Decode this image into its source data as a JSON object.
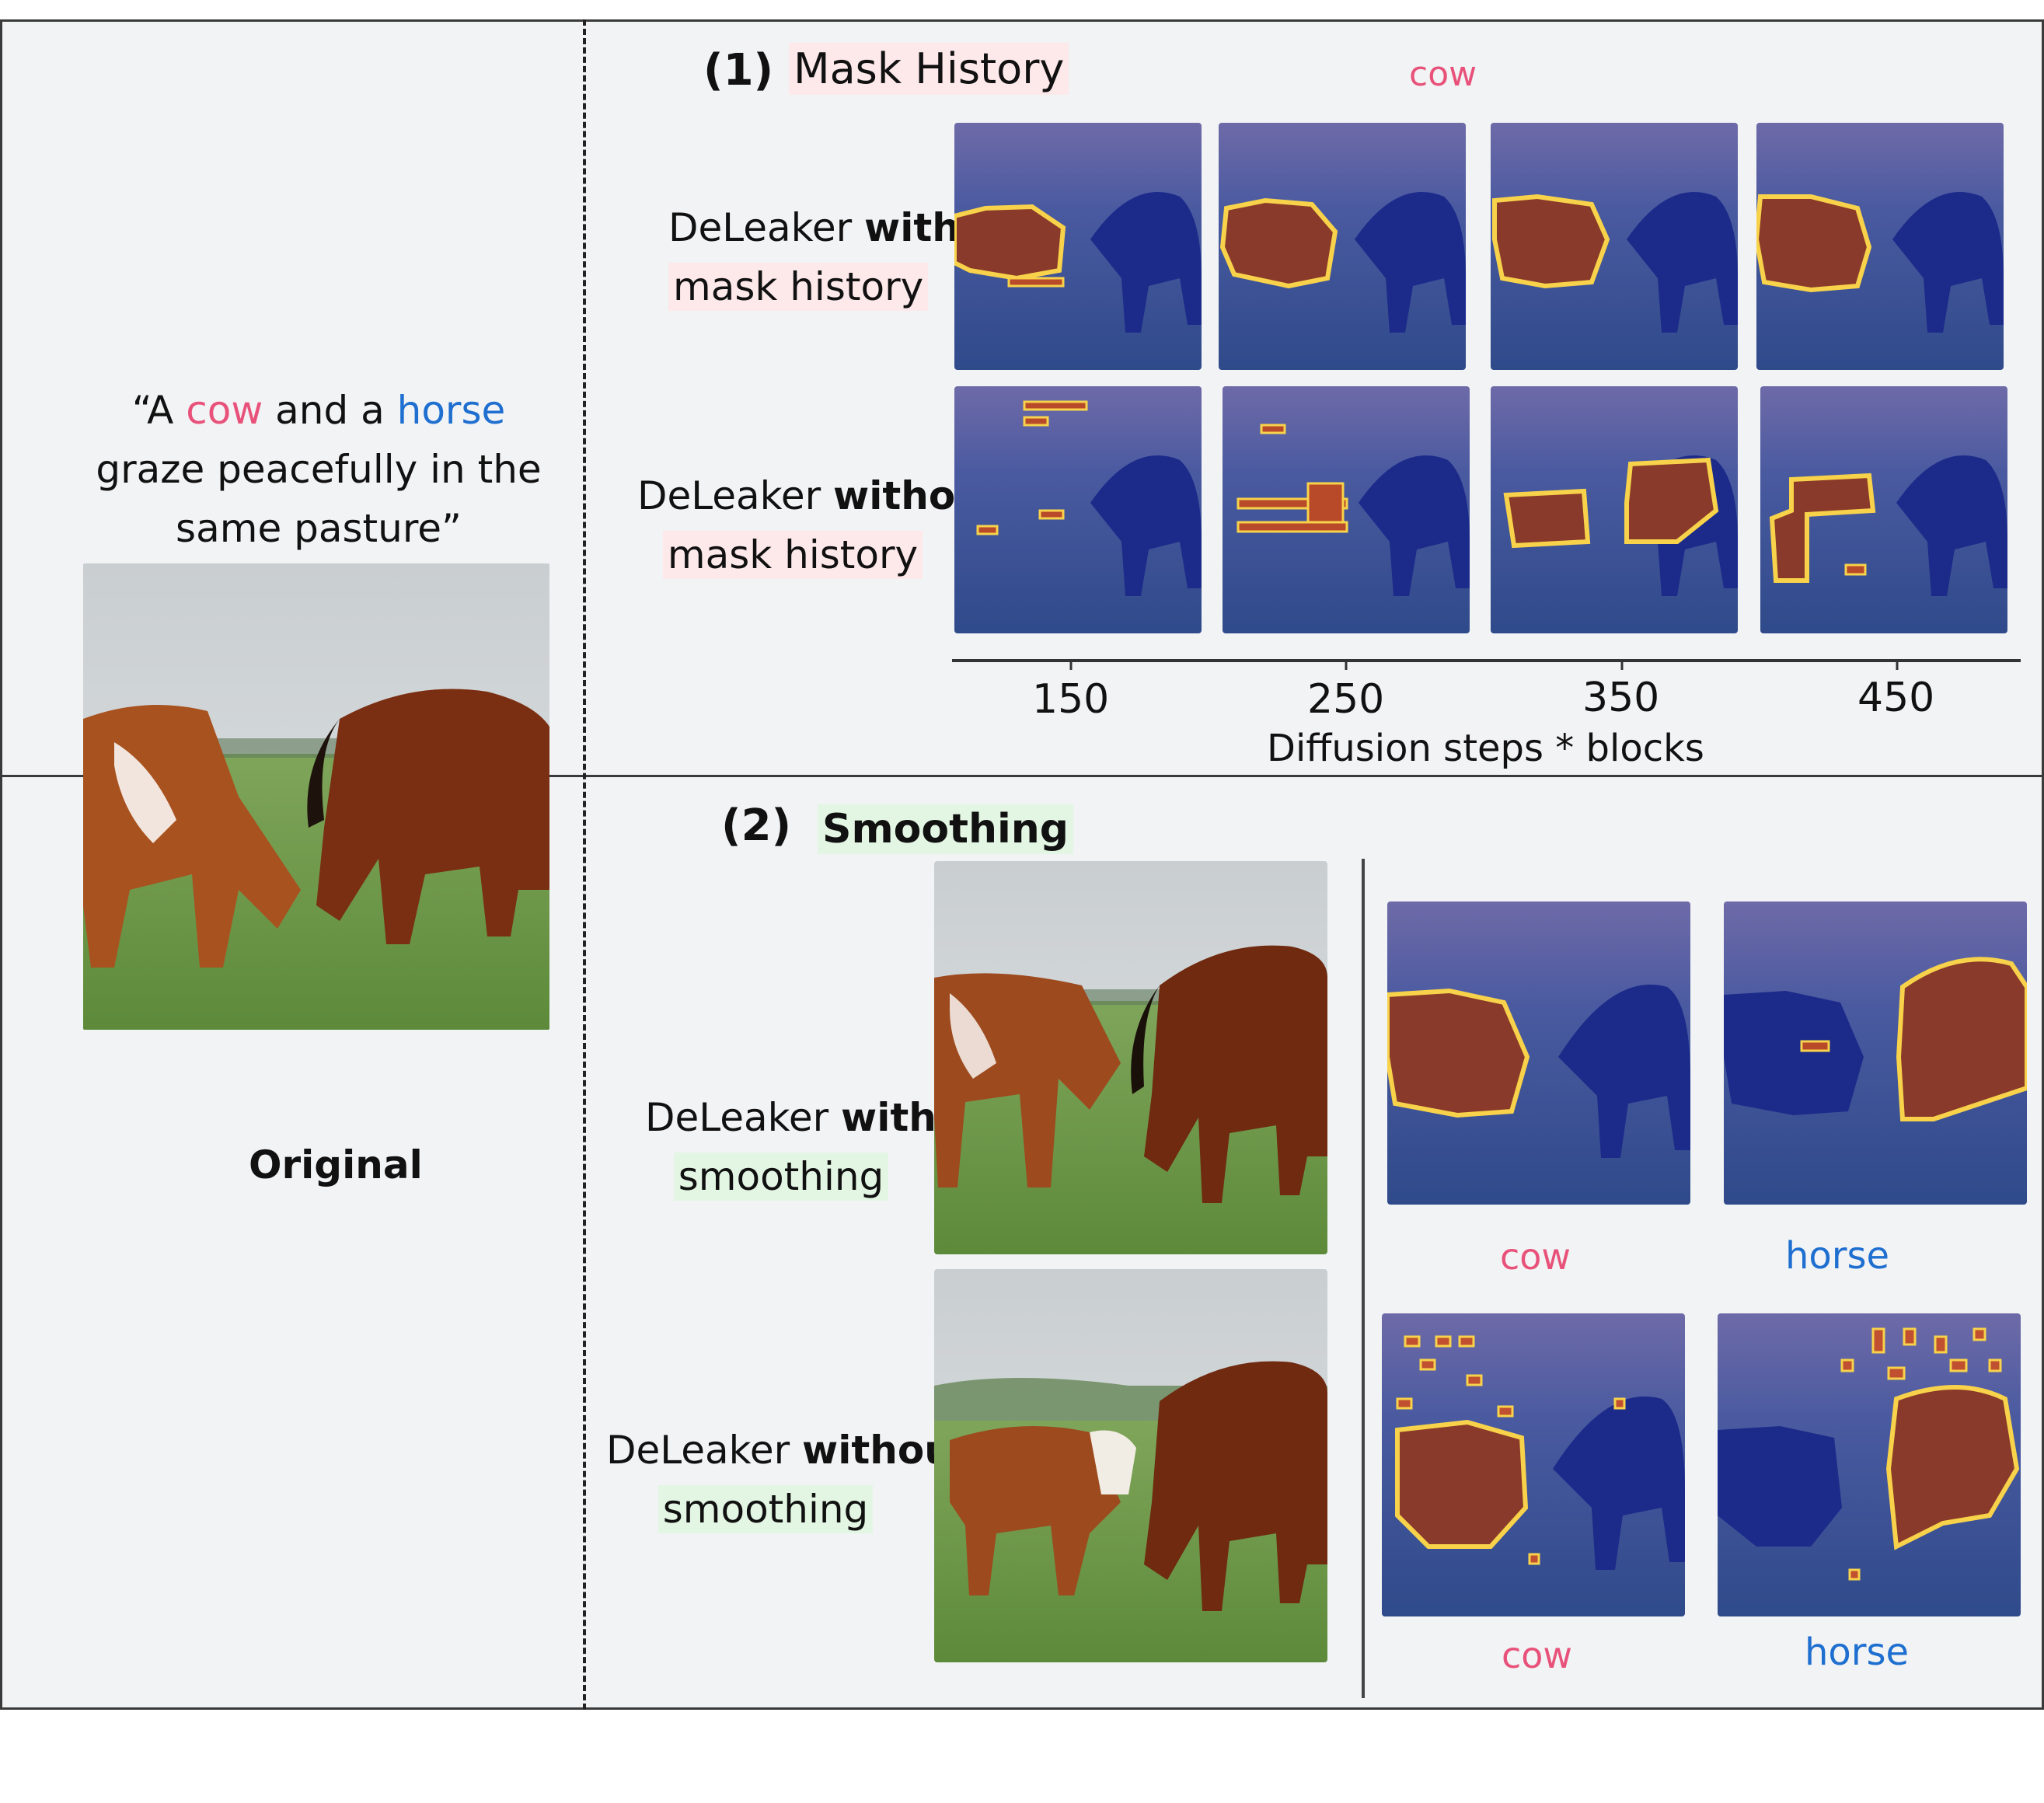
{
  "prompt": {
    "open_quote": "“A ",
    "cow_word": "cow",
    "mid1": " and a ",
    "horse_word": "horse",
    "line2": "graze peacefully in the",
    "line3": "same pasture”"
  },
  "original_label": "Original",
  "section1": {
    "number": "(1)",
    "title": "Mask History",
    "token_label": "cow",
    "row1": {
      "name": "DeLeaker",
      "bold": "with",
      "line2": "mask history"
    },
    "row2": {
      "name": "DeLeaker",
      "bold": "without",
      "line2": "mask history"
    },
    "axis": {
      "ticks": [
        "150",
        "250",
        "350",
        "450"
      ],
      "label": "Diffusion steps * blocks"
    }
  },
  "section2": {
    "number": "(2)",
    "title": "Smoothing",
    "row1": {
      "name": "DeLeaker",
      "bold": "with",
      "line2": "smoothing"
    },
    "row2": {
      "name": "DeLeaker",
      "bold": "without",
      "line2": "smoothing"
    },
    "labels_top": [
      "cow",
      "horse"
    ],
    "labels_bottom": [
      "cow",
      "horse"
    ]
  },
  "colors": {
    "cow": "#e8527a",
    "horse": "#1e6fd0",
    "panel": "#f2f3f5"
  }
}
